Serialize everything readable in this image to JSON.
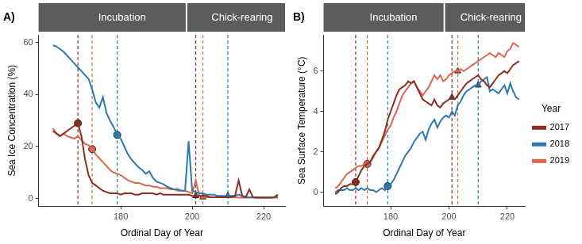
{
  "chart_data": [
    {
      "type": "line",
      "title": "A)",
      "annotations": [
        "Incubation",
        "Chick-rearing"
      ],
      "x_label": "Ordinal Day of Year",
      "y_label": "Sea Ice Concentration (%)",
      "x": [
        161,
        162,
        163,
        164,
        165,
        166,
        167,
        168,
        169,
        170,
        171,
        172,
        173,
        174,
        175,
        176,
        177,
        178,
        179,
        180,
        181,
        182,
        183,
        184,
        185,
        186,
        187,
        188,
        189,
        190,
        191,
        192,
        193,
        194,
        195,
        196,
        197,
        198,
        199,
        200,
        201,
        202,
        203,
        204,
        205,
        206,
        207,
        208,
        209,
        210,
        211,
        212,
        213,
        214,
        215,
        216,
        217,
        218,
        219,
        220,
        221,
        222,
        223,
        224
      ],
      "xlim": [
        157,
        226
      ],
      "xticks": [
        180,
        200,
        220
      ],
      "ylim": [
        -3,
        63
      ],
      "yticks": [
        0,
        20,
        40,
        60
      ],
      "grid": false,
      "series": [
        {
          "color": "#8b2e22",
          "phase_days": [
            168,
            201
          ],
          "values": [
            26,
            25,
            24,
            25,
            26,
            27,
            28,
            29,
            24,
            15,
            9,
            6,
            5,
            4,
            3,
            2.5,
            2,
            2,
            2,
            1.5,
            2,
            2,
            2,
            1.5,
            1.5,
            2,
            2,
            2,
            2,
            1.5,
            2,
            1.5,
            1.5,
            1.5,
            1.5,
            1.5,
            1.5,
            1.5,
            1.5,
            1,
            1,
            1,
            1,
            1,
            0.5,
            0.5,
            0.5,
            0.5,
            0.5,
            0.5,
            0.5,
            1,
            7,
            1,
            0.5,
            3.5,
            0.5,
            0.3,
            0.3,
            0.3,
            0.3,
            0.3,
            0.5,
            1.5
          ]
        },
        {
          "color": "#2a7ab0",
          "phase_days": [
            179,
            210
          ],
          "values": [
            59,
            58.5,
            57.5,
            56.5,
            55,
            53.5,
            52,
            50.5,
            49,
            47.5,
            46,
            42,
            37,
            35,
            39,
            33,
            30,
            27.5,
            24.5,
            23,
            20,
            17,
            15,
            13.5,
            12,
            11,
            9.5,
            10.5,
            8,
            6.5,
            6,
            5.5,
            4.5,
            4,
            3.5,
            3.5,
            3,
            3,
            22,
            3,
            2.5,
            2,
            2,
            1.5,
            1.5,
            1.5,
            1,
            1,
            1,
            1,
            1,
            1,
            1.5,
            1,
            0.5,
            0.5,
            0.5,
            0.5,
            0.5,
            0.5,
            0.5,
            0.5,
            0.5,
            0.5
          ]
        },
        {
          "color": "#d9684f",
          "phase_days": [
            172,
            203
          ],
          "values": [
            27,
            25,
            24,
            25,
            24,
            23.5,
            23,
            24,
            22.5,
            21,
            20.5,
            19,
            17,
            15.5,
            14,
            12.5,
            11,
            10,
            9.5,
            9,
            8,
            7,
            6.5,
            6,
            6,
            5.5,
            5,
            5,
            4.5,
            4.5,
            4,
            4,
            4,
            3.5,
            3.5,
            3,
            3,
            3,
            2.5,
            2,
            7,
            1,
            0.5,
            0.5,
            0.5,
            0.5,
            0.5,
            0.5,
            0.5,
            0.5,
            0.5,
            0.5,
            0.3,
            0.3,
            0.3,
            0.3,
            0.3,
            0.3,
            0.3,
            0.3,
            0.3,
            0.3,
            0.3,
            0.3
          ]
        }
      ]
    },
    {
      "type": "line",
      "title": "B)",
      "annotations": [
        "Incubation",
        "Chick-rearing"
      ],
      "x_label": "Ordinal Day of Year",
      "y_label": "Sea Surface Temperature (°C)",
      "x": [
        161,
        162,
        163,
        164,
        165,
        166,
        167,
        168,
        169,
        170,
        171,
        172,
        173,
        174,
        175,
        176,
        177,
        178,
        179,
        180,
        181,
        182,
        183,
        184,
        185,
        186,
        187,
        188,
        189,
        190,
        191,
        192,
        193,
        194,
        195,
        196,
        197,
        198,
        199,
        200,
        201,
        202,
        203,
        204,
        205,
        206,
        207,
        208,
        209,
        210,
        211,
        212,
        213,
        214,
        215,
        216,
        217,
        218,
        219,
        220,
        221,
        222,
        223,
        224
      ],
      "xlim": [
        157,
        226
      ],
      "xticks": [
        180,
        200,
        220
      ],
      "ylim": [
        -0.7,
        7.8
      ],
      "yticks": [
        0,
        2,
        4,
        6
      ],
      "grid": false,
      "legend": "right",
      "legend_title": "Year",
      "series": [
        {
          "name": "2017",
          "color": "#8b2e22",
          "phase_days": [
            168,
            201
          ],
          "values": [
            -0.1,
            0,
            0.2,
            0.3,
            0.3,
            0.4,
            0.4,
            0.5,
            0.8,
            1.1,
            1.3,
            1.4,
            1.5,
            1.8,
            2.0,
            2.2,
            2.6,
            3.0,
            3.6,
            4.0,
            4.4,
            4.8,
            5.1,
            5.2,
            5.3,
            5.5,
            5.4,
            5.5,
            5.2,
            4.9,
            4.6,
            4.5,
            4.4,
            4.3,
            4.6,
            4.3,
            4.2,
            4.4,
            4.5,
            4.6,
            4.7,
            4.6,
            4.8,
            5.0,
            5.2,
            5.4,
            5.5,
            5.6,
            5.7,
            5.8,
            5.6,
            5.5,
            5.3,
            5.2,
            5.4,
            5.6,
            5.8,
            5.9,
            6.0,
            5.9,
            6.1,
            6.3,
            6.4,
            6.5
          ]
        },
        {
          "name": "2018",
          "color": "#2a7ab0",
          "phase_days": [
            179,
            210
          ],
          "values": [
            0,
            0.1,
            0.1,
            0.1,
            0.2,
            0.1,
            0.1,
            0.2,
            0.1,
            0.2,
            0.1,
            0.2,
            0.1,
            0.1,
            0,
            0.1,
            0.2,
            0.1,
            0.3,
            0.4,
            0.6,
            0.9,
            1.2,
            1.5,
            1.8,
            2.0,
            2.2,
            2.5,
            2.7,
            2.9,
            3.0,
            2.6,
            3.1,
            3.4,
            3.6,
            3.2,
            3.5,
            3.7,
            3.8,
            3.7,
            4.0,
            3.8,
            4.3,
            4.5,
            4.8,
            5.0,
            5.1,
            5.2,
            5.3,
            5.3,
            5.5,
            5.6,
            5.7,
            5.0,
            5.1,
            5.0,
            4.9,
            5.1,
            5.3,
            4.9,
            5.4,
            5.0,
            4.7,
            4.6
          ]
        },
        {
          "name": "2019",
          "color": "#d9684f",
          "phase_days": [
            172,
            203
          ],
          "values": [
            0.2,
            0.3,
            0.5,
            0.7,
            0.9,
            1.0,
            1.1,
            1.2,
            1.3,
            1.3,
            1.4,
            1.4,
            1.5,
            1.7,
            2.0,
            2.2,
            2.5,
            2.8,
            3.1,
            3.3,
            3.7,
            4.0,
            4.4,
            4.8,
            5.0,
            5.2,
            5.4,
            5.5,
            5.2,
            5.0,
            4.8,
            5.0,
            5.2,
            5.5,
            5.8,
            5.6,
            5.8,
            5.5,
            5.6,
            5.8,
            5.9,
            6.0,
            6.0,
            6.1,
            6.0,
            6.1,
            6.2,
            6.3,
            6.4,
            6.5,
            6.6,
            6.7,
            6.8,
            6.9,
            6.8,
            6.7,
            6.9,
            6.8,
            6.7,
            7.0,
            7.1,
            7.4,
            7.3,
            7.2
          ]
        }
      ]
    }
  ]
}
